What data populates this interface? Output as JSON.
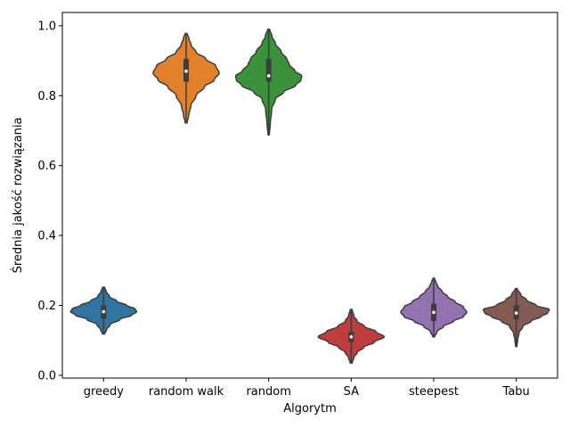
{
  "chart_data": {
    "type": "violin",
    "title": "",
    "xlabel": "Algorytm",
    "ylabel": "Średnia jakość rozwiązania",
    "ylim": [
      -0.008,
      1.038
    ],
    "yticks": [
      "0.0",
      "0.2",
      "0.4",
      "0.6",
      "0.8",
      "1.0"
    ],
    "yticks_values": [
      0.0,
      0.2,
      0.4,
      0.6,
      0.8,
      1.0
    ],
    "grid": false,
    "categories": [
      "greedy",
      "random walk",
      "random",
      "SA",
      "steepest",
      "Tabu"
    ],
    "series": [
      {
        "category": "greedy",
        "color": "#3274a1",
        "min": 0.118,
        "max": 0.252,
        "q1": 0.162,
        "median": 0.182,
        "q3": 0.2,
        "density": [
          [
            0.118,
            0.03
          ],
          [
            0.13,
            0.09
          ],
          [
            0.145,
            0.2
          ],
          [
            0.16,
            0.5
          ],
          [
            0.172,
            0.85
          ],
          [
            0.182,
            1.0
          ],
          [
            0.19,
            0.95
          ],
          [
            0.2,
            0.7
          ],
          [
            0.212,
            0.4
          ],
          [
            0.225,
            0.18
          ],
          [
            0.24,
            0.08
          ],
          [
            0.252,
            0.03
          ]
        ]
      },
      {
        "category": "random walk",
        "color": "#e1812c",
        "min": 0.722,
        "max": 0.978,
        "q1": 0.84,
        "median": 0.87,
        "q3": 0.905,
        "density": [
          [
            0.722,
            0.03
          ],
          [
            0.745,
            0.08
          ],
          [
            0.77,
            0.14
          ],
          [
            0.8,
            0.3
          ],
          [
            0.825,
            0.55
          ],
          [
            0.845,
            0.85
          ],
          [
            0.865,
            1.0
          ],
          [
            0.885,
            0.9
          ],
          [
            0.905,
            0.6
          ],
          [
            0.925,
            0.3
          ],
          [
            0.945,
            0.15
          ],
          [
            0.965,
            0.08
          ],
          [
            0.978,
            0.03
          ]
        ]
      },
      {
        "category": "random",
        "color": "#3a923a",
        "min": 0.688,
        "max": 0.99,
        "q1": 0.84,
        "median": 0.857,
        "q3": 0.905,
        "density": [
          [
            0.688,
            0.02
          ],
          [
            0.72,
            0.05
          ],
          [
            0.76,
            0.09
          ],
          [
            0.79,
            0.2
          ],
          [
            0.81,
            0.45
          ],
          [
            0.83,
            0.82
          ],
          [
            0.845,
            0.98
          ],
          [
            0.857,
            1.0
          ],
          [
            0.87,
            0.8
          ],
          [
            0.89,
            0.62
          ],
          [
            0.905,
            0.55
          ],
          [
            0.925,
            0.38
          ],
          [
            0.95,
            0.2
          ],
          [
            0.97,
            0.1
          ],
          [
            0.99,
            0.03
          ]
        ]
      },
      {
        "category": "SA",
        "color": "#c03d3e",
        "min": 0.035,
        "max": 0.188,
        "q1": 0.095,
        "median": 0.11,
        "q3": 0.125,
        "density": [
          [
            0.035,
            0.03
          ],
          [
            0.05,
            0.08
          ],
          [
            0.065,
            0.18
          ],
          [
            0.08,
            0.38
          ],
          [
            0.095,
            0.7
          ],
          [
            0.11,
            1.0
          ],
          [
            0.125,
            0.75
          ],
          [
            0.14,
            0.4
          ],
          [
            0.155,
            0.18
          ],
          [
            0.17,
            0.08
          ],
          [
            0.188,
            0.03
          ]
        ]
      },
      {
        "category": "steepest",
        "color": "#9372b2",
        "min": 0.11,
        "max": 0.278,
        "q1": 0.155,
        "median": 0.18,
        "q3": 0.205,
        "density": [
          [
            0.11,
            0.03
          ],
          [
            0.125,
            0.1
          ],
          [
            0.14,
            0.3
          ],
          [
            0.155,
            0.6
          ],
          [
            0.168,
            0.9
          ],
          [
            0.18,
            1.0
          ],
          [
            0.195,
            0.9
          ],
          [
            0.21,
            0.65
          ],
          [
            0.225,
            0.42
          ],
          [
            0.24,
            0.25
          ],
          [
            0.255,
            0.12
          ],
          [
            0.268,
            0.06
          ],
          [
            0.278,
            0.02
          ]
        ]
      },
      {
        "category": "Tabu",
        "color": "#845b53",
        "min": 0.082,
        "max": 0.248,
        "q1": 0.16,
        "median": 0.178,
        "q3": 0.2,
        "density": [
          [
            0.082,
            0.02
          ],
          [
            0.1,
            0.04
          ],
          [
            0.12,
            0.08
          ],
          [
            0.14,
            0.2
          ],
          [
            0.155,
            0.45
          ],
          [
            0.168,
            0.75
          ],
          [
            0.178,
            0.95
          ],
          [
            0.188,
            1.0
          ],
          [
            0.2,
            0.6
          ],
          [
            0.215,
            0.32
          ],
          [
            0.23,
            0.14
          ],
          [
            0.248,
            0.03
          ]
        ]
      }
    ]
  }
}
